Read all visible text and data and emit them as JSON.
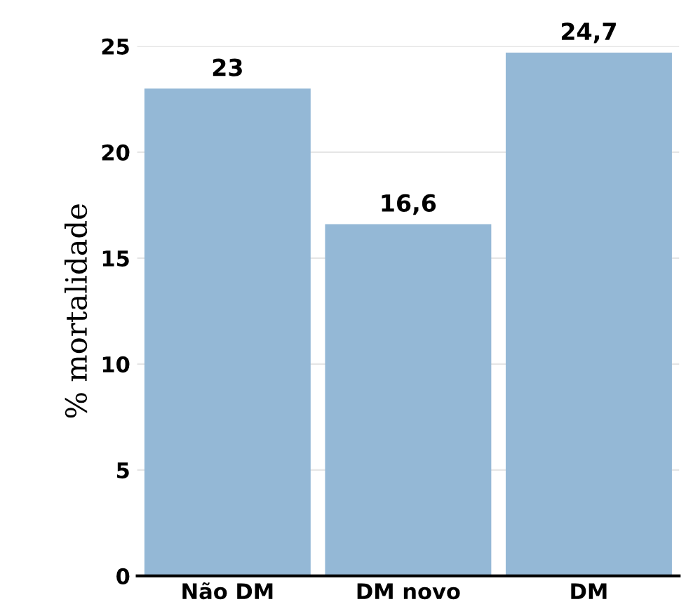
{
  "chart_data": {
    "type": "bar",
    "ylabel": "% mortalidade",
    "categories": [
      "Não DM",
      "DM novo",
      "DM"
    ],
    "values": [
      23,
      16.6,
      24.7
    ],
    "value_labels": [
      "23",
      "16,6",
      "24,7"
    ],
    "color": "#94b8d6",
    "ylim": [
      0,
      25
    ],
    "yticks": [
      0,
      5,
      10,
      15,
      20,
      25
    ],
    "grid": "y"
  }
}
